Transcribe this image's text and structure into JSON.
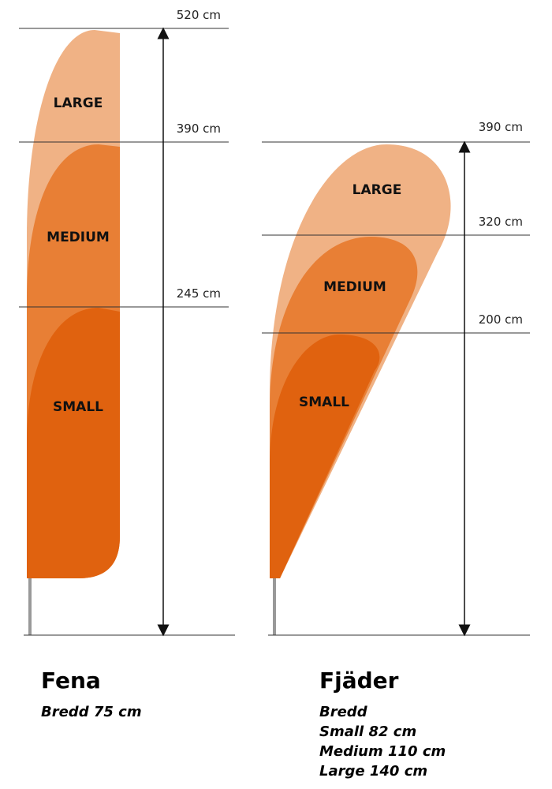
{
  "fena": {
    "heights": [
      "520 cm",
      "390 cm",
      "245 cm"
    ],
    "sizes": [
      "LARGE",
      "MEDIUM",
      "SMALL"
    ],
    "title": "Fena",
    "description": [
      "Bredd 75 cm"
    ]
  },
  "fjader": {
    "heights": [
      "390 cm",
      "320 cm",
      "200 cm"
    ],
    "sizes": [
      "LARGE",
      "MEDIUM",
      "SMALL"
    ],
    "title": "Fjäder",
    "description": [
      "Bredd",
      "Small 82 cm",
      "Medium 110 cm",
      "Large 140 cm"
    ]
  }
}
